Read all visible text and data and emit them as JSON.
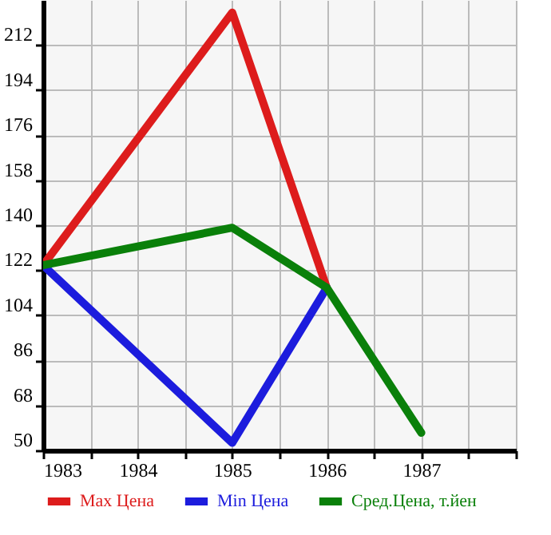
{
  "chart_data": {
    "type": "line",
    "xlim": [
      1983,
      1988
    ],
    "xticks": [
      1983,
      {
        "value": 1983.5,
        "label": null
      },
      1984,
      {
        "value": 1984.5,
        "label": null
      },
      1985,
      {
        "value": 1985.5,
        "label": null
      },
      1986,
      {
        "value": 1986.5,
        "label": null
      },
      1987,
      {
        "value": 1987.5,
        "label": null
      },
      {
        "value": 1988,
        "label": null
      }
    ],
    "ylim": [
      50,
      230
    ],
    "yticks": [
      50,
      68,
      86,
      104,
      122,
      140,
      158,
      176,
      194,
      212
    ],
    "grid": true,
    "legend": "bottom",
    "marker": "none",
    "line_style": "solid",
    "series": [
      {
        "name": "Max Цена",
        "color": "#dd1c1c",
        "x": [
          1983,
          1985,
          1986
        ],
        "values": [
          124,
          225,
          115
        ]
      },
      {
        "name": "Min Цена",
        "color": "#1c1cdd",
        "x": [
          1983,
          1985,
          1986
        ],
        "values": [
          124,
          53,
          115
        ]
      },
      {
        "name": "Сред.Цена, т.йен",
        "color": "#0a800a",
        "x": [
          1983,
          1985,
          1986,
          1987
        ],
        "values": [
          124,
          139,
          115,
          57
        ]
      }
    ]
  }
}
